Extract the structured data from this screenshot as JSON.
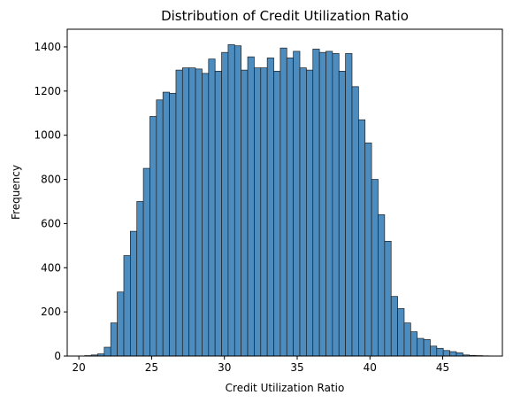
{
  "chart_data": {
    "type": "bar",
    "title": "Distribution of Credit Utilization Ratio",
    "xlabel": "Credit Utilization Ratio",
    "ylabel": "Frequency",
    "xlim": [
      19.2,
      49.1
    ],
    "ylim": [
      0,
      1480
    ],
    "xticks": [
      20,
      25,
      30,
      35,
      40,
      45
    ],
    "yticks": [
      0,
      200,
      400,
      600,
      800,
      1000,
      1200,
      1400
    ],
    "bin_start": 20.4,
    "bin_width": 0.448,
    "bar_color": "#4c8cbf",
    "values": [
      2,
      5,
      10,
      40,
      150,
      290,
      455,
      565,
      700,
      850,
      1085,
      1160,
      1195,
      1190,
      1295,
      1305,
      1305,
      1300,
      1280,
      1345,
      1290,
      1375,
      1410,
      1405,
      1295,
      1355,
      1305,
      1305,
      1350,
      1290,
      1395,
      1350,
      1380,
      1305,
      1295,
      1390,
      1375,
      1380,
      1370,
      1290,
      1370,
      1220,
      1070,
      965,
      800,
      640,
      520,
      270,
      215,
      150,
      110,
      80,
      75,
      45,
      35,
      25,
      20,
      15,
      5,
      3,
      2,
      1
    ]
  }
}
